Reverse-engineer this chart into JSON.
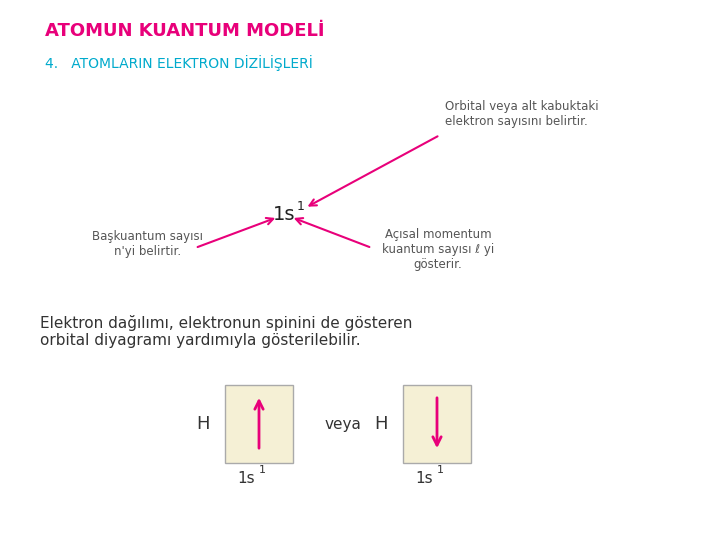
{
  "title": "ATOMUN KUANTUM MODELİ",
  "subtitle": "4.   ATOMLARIN ELEKTRON DİZİLİŞLERİ",
  "title_color": "#e8007a",
  "subtitle_color": "#00aacc",
  "bg_color": "#ffffff",
  "body_text": "Elektron dağılımı, elektronun spinini de gösteren\norbital diyagramı yardımıyla gösterilebilir.",
  "body_text_color": "#333333",
  "annotation_right_text": "Orbital veya alt kabuktaki\nelektron sayısını belirtir.",
  "annotation_left_text": "Başkuantum sayısı\nn'yi belirtir.",
  "annotation_right2_text": "Açısal momentum\nkuantum sayısı ℓ yi\ngösterir.",
  "annotation_color": "#555555",
  "arrow_color": "#e8007a",
  "box_color": "#f5f0d5",
  "box_edge_color": "#aaaaaa",
  "spin_arrow_color": "#e8007a"
}
